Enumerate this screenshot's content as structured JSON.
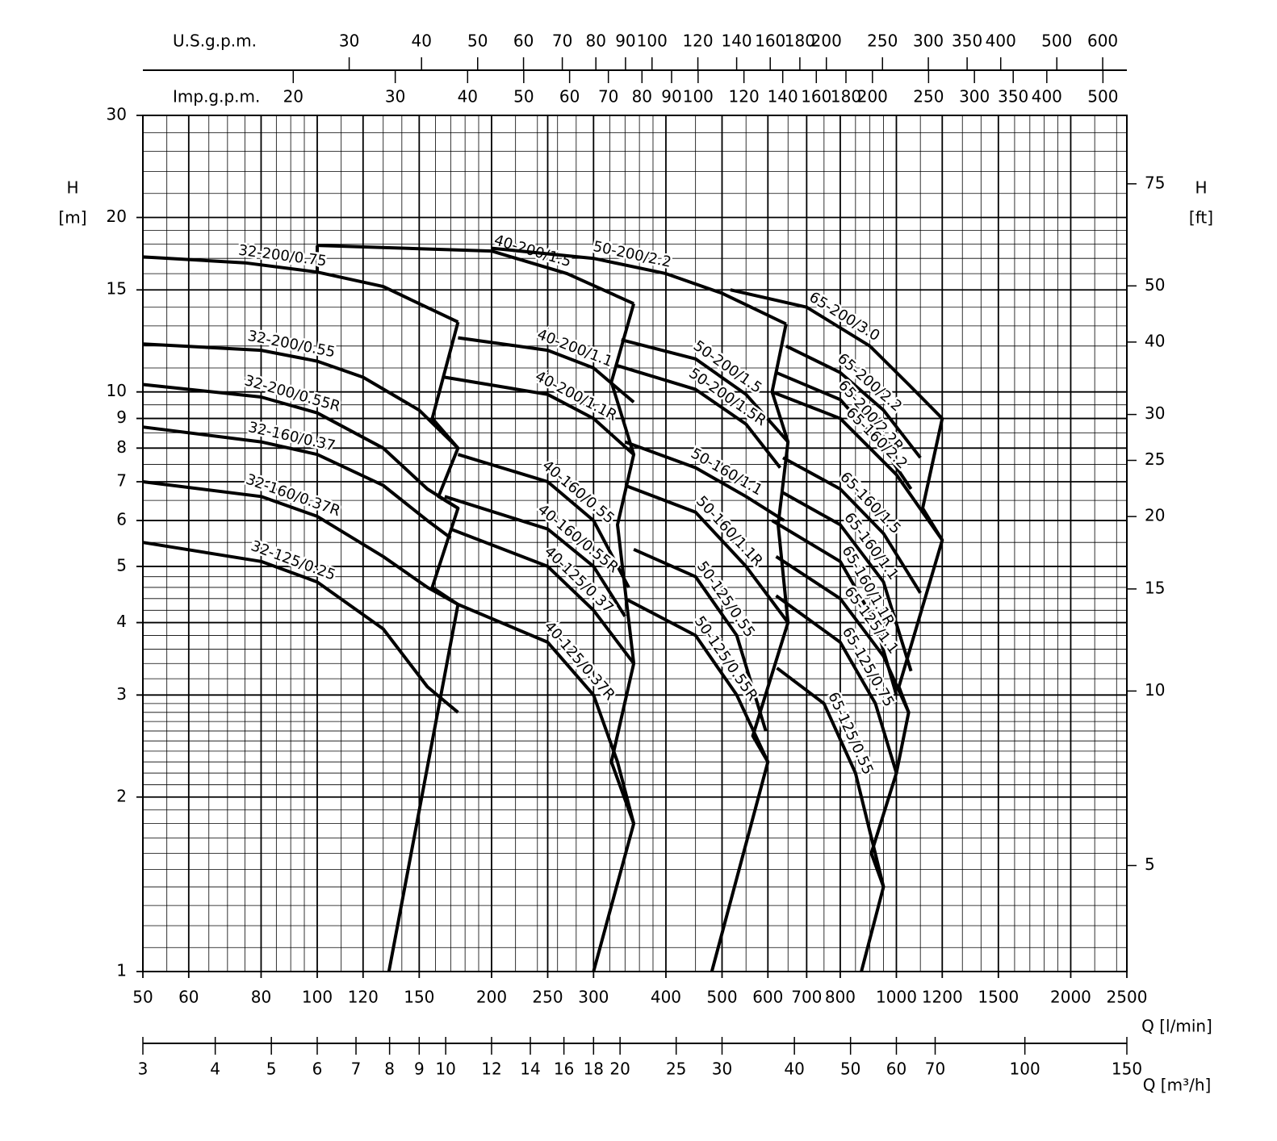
{
  "chart_data": {
    "type": "line",
    "xscale": "log",
    "yscale": "log",
    "color": "#000000",
    "grid": true,
    "x_label": "Q [l/min]",
    "xlim": [
      50,
      2500
    ],
    "xticks": [
      50,
      60,
      80,
      100,
      120,
      150,
      200,
      250,
      300,
      400,
      500,
      600,
      700,
      800,
      1000,
      1200,
      1500,
      2000,
      2500
    ],
    "xminorticks": [
      55,
      65,
      70,
      75,
      85,
      90,
      95,
      110,
      130,
      140,
      160,
      170,
      180,
      190,
      220,
      240,
      260,
      280,
      320,
      340,
      360,
      380,
      450,
      550,
      650,
      750,
      850,
      900,
      950,
      1100,
      1300,
      1400,
      1600,
      1700,
      1800,
      1900,
      2200,
      2400
    ],
    "y_label": "H",
    "y_unit": "[m]",
    "ylim": [
      1,
      30
    ],
    "yticks": [
      1,
      2,
      3,
      4,
      5,
      6,
      7,
      8,
      9,
      10,
      15,
      20,
      30
    ],
    "yminorticks": [
      1.1,
      1.2,
      1.3,
      1.4,
      1.5,
      1.6,
      1.7,
      1.8,
      1.9,
      2.1,
      2.2,
      2.3,
      2.4,
      2.5,
      2.6,
      2.7,
      2.8,
      2.9,
      3.2,
      3.4,
      3.6,
      3.8,
      4.2,
      4.4,
      4.6,
      4.8,
      5.5,
      6.5,
      7.5,
      8.5,
      9.5,
      11,
      12,
      13,
      14,
      16,
      17,
      18,
      19,
      22,
      24,
      26,
      28
    ],
    "y2_label": "H",
    "y2_unit": "[ft]",
    "y2lim": [
      3.281,
      98.43
    ],
    "y2ticks": [
      5,
      10,
      15,
      20,
      25,
      30,
      40,
      50,
      75
    ],
    "x2": {
      "label": "Q [m³/h]",
      "lim": [
        3,
        150
      ],
      "ticks": [
        3,
        4,
        5,
        6,
        7,
        8,
        9,
        10,
        12,
        14,
        16,
        18,
        20,
        25,
        30,
        40,
        50,
        60,
        70,
        100,
        150
      ]
    },
    "x3": {
      "label": "U.S.g.p.m.",
      "lim": [
        13.21,
        660.5
      ],
      "ticks": [
        30,
        40,
        50,
        60,
        70,
        80,
        90,
        100,
        120,
        140,
        160,
        180,
        200,
        250,
        300,
        350,
        400,
        500,
        600
      ]
    },
    "x4": {
      "label": "Imp.g.p.m.",
      "lim": [
        11.0,
        549.9
      ],
      "ticks": [
        20,
        30,
        40,
        50,
        60,
        70,
        80,
        90,
        100,
        120,
        140,
        160,
        180,
        200,
        250,
        300,
        350,
        400,
        500
      ]
    },
    "series": [
      {
        "name": "32-200/0.75",
        "x": [
          50,
          75,
          100,
          130,
          175
        ],
        "values": [
          17.1,
          16.7,
          16.1,
          15.2,
          13.2
        ]
      },
      {
        "name": "32-200/0.55",
        "x": [
          50,
          80,
          100,
          120,
          150,
          175
        ],
        "values": [
          12.1,
          11.8,
          11.3,
          10.6,
          9.3,
          8.0
        ]
      },
      {
        "name": "32-200/0.55R",
        "x": [
          50,
          80,
          100,
          130,
          155,
          175
        ],
        "values": [
          10.3,
          9.8,
          9.2,
          8.0,
          6.8,
          6.3
        ]
      },
      {
        "name": "32-160/0.37",
        "x": [
          50,
          80,
          100,
          130,
          155,
          170
        ],
        "values": [
          8.7,
          8.2,
          7.8,
          6.9,
          6.0,
          5.6
        ]
      },
      {
        "name": "32-160/0.37R",
        "x": [
          50,
          80,
          100,
          130,
          155,
          175
        ],
        "values": [
          7.0,
          6.6,
          6.1,
          5.2,
          4.6,
          4.3
        ]
      },
      {
        "name": "32-125/0.25",
        "x": [
          50,
          80,
          100,
          130,
          155,
          175
        ],
        "values": [
          5.5,
          5.1,
          4.7,
          3.9,
          3.1,
          2.8
        ]
      },
      {
        "name": "40-200/1.5",
        "x": [
          100,
          200,
          270,
          352
        ],
        "values": [
          17.9,
          17.5,
          16.0,
          14.2
        ]
      },
      {
        "name": "40-200/1.1",
        "x": [
          175,
          250,
          300,
          352
        ],
        "values": [
          12.4,
          11.8,
          11.0,
          9.6
        ]
      },
      {
        "name": "40-200/1.1R",
        "x": [
          166,
          250,
          300,
          352
        ],
        "values": [
          10.6,
          9.9,
          9.0,
          7.8
        ]
      },
      {
        "name": "40-160/0.55",
        "x": [
          175,
          250,
          300,
          345
        ],
        "values": [
          7.8,
          7.0,
          6.0,
          4.6
        ]
      },
      {
        "name": "40-160/0.55R",
        "x": [
          166,
          250,
          300,
          340
        ],
        "values": [
          6.6,
          5.8,
          5.0,
          4.1
        ]
      },
      {
        "name": "40-125/0.37",
        "x": [
          170,
          250,
          300,
          352
        ],
        "values": [
          5.8,
          5.0,
          4.2,
          3.4
        ]
      },
      {
        "name": "40-125/0.37R",
        "x": [
          175,
          250,
          300,
          330,
          352
        ],
        "values": [
          4.3,
          3.7,
          3.0,
          2.3,
          1.8
        ]
      },
      {
        "name": "50-200/2.2",
        "x": [
          200,
          300,
          400,
          500,
          645
        ],
        "values": [
          17.7,
          17.0,
          16.0,
          14.8,
          13.1
        ]
      },
      {
        "name": "50-200/1.5",
        "x": [
          335,
          450,
          550,
          650
        ],
        "values": [
          12.3,
          11.4,
          9.9,
          8.2
        ]
      },
      {
        "name": "50-200/1.5R",
        "x": [
          330,
          450,
          550,
          630
        ],
        "values": [
          11.1,
          10.1,
          8.8,
          7.4
        ]
      },
      {
        "name": "50-160/1.1",
        "x": [
          340,
          450,
          550,
          640
        ],
        "values": [
          8.2,
          7.4,
          6.6,
          6.0
        ]
      },
      {
        "name": "50-160/1.1R",
        "x": [
          340,
          450,
          550,
          650
        ],
        "values": [
          6.9,
          6.2,
          5.0,
          4.0
        ]
      },
      {
        "name": "50-125/0.55",
        "x": [
          352,
          450,
          530,
          595
        ],
        "values": [
          5.35,
          4.8,
          3.8,
          2.6
        ]
      },
      {
        "name": "50-125/0.55R",
        "x": [
          340,
          450,
          530,
          600
        ],
        "values": [
          4.4,
          3.8,
          3.0,
          2.3
        ]
      },
      {
        "name": "65-200/3.0",
        "x": [
          517,
          700,
          900,
          1050,
          1200
        ],
        "values": [
          15.0,
          14.0,
          12.0,
          10.3,
          9.0
        ]
      },
      {
        "name": "65-200/2.2",
        "x": [
          645,
          800,
          950,
          1100
        ],
        "values": [
          12.0,
          10.8,
          9.3,
          7.7
        ]
      },
      {
        "name": "65-200/2.2R",
        "x": [
          620,
          800,
          950,
          1060
        ],
        "values": [
          10.8,
          9.7,
          8.0,
          6.8
        ]
      },
      {
        "name": "65-160/2.2",
        "x": [
          610,
          800,
          1000,
          1200
        ],
        "values": [
          10.0,
          9.0,
          7.2,
          5.55
        ]
      },
      {
        "name": "65-160/1.5",
        "x": [
          637,
          800,
          950,
          1100
        ],
        "values": [
          7.7,
          6.8,
          5.7,
          4.5
        ]
      },
      {
        "name": "65-160/1.1",
        "x": [
          637,
          800,
          950,
          1060
        ],
        "values": [
          6.7,
          5.9,
          4.7,
          3.3
        ]
      },
      {
        "name": "65-160/1.1R",
        "x": [
          610,
          800,
          920,
          1000
        ],
        "values": [
          6.0,
          5.1,
          4.0,
          3.0
        ]
      },
      {
        "name": "65-125/1.1",
        "x": [
          620,
          800,
          950,
          1050
        ],
        "values": [
          5.2,
          4.4,
          3.5,
          2.8
        ]
      },
      {
        "name": "65-125/0.75",
        "x": [
          620,
          800,
          920,
          1000
        ],
        "values": [
          4.45,
          3.7,
          2.9,
          2.2
        ]
      },
      {
        "name": "65-125/0.55",
        "x": [
          622,
          750,
          850,
          950
        ],
        "values": [
          3.34,
          2.9,
          2.2,
          1.4
        ]
      }
    ],
    "limits": [
      {
        "x": [
          133,
          175,
          158,
          175,
          162,
          175,
          158,
          175
        ],
        "values": [
          1.0,
          4.3,
          4.6,
          6.3,
          6.6,
          8.0,
          9.0,
          13.2
        ]
      },
      {
        "x": [
          100,
          100
        ],
        "values": [
          16.1,
          17.9
        ]
      },
      {
        "x": [
          300,
          352,
          322,
          352,
          330,
          352,
          322,
          352
        ],
        "values": [
          1.0,
          1.8,
          2.3,
          3.4,
          5.9,
          7.8,
          10.4,
          14.2
        ]
      },
      {
        "x": [
          480,
          600,
          565,
          650,
          625,
          650,
          610,
          645
        ],
        "values": [
          1.0,
          2.3,
          2.55,
          4.0,
          5.9,
          8.2,
          10.0,
          13.1
        ]
      },
      {
        "x": [
          870,
          950,
          905,
          1000,
          1050,
          1010,
          1200,
          1110,
          1200
        ],
        "values": [
          1.0,
          1.4,
          1.6,
          2.2,
          2.8,
          3.1,
          5.55,
          6.3,
          9.0
        ]
      }
    ]
  }
}
